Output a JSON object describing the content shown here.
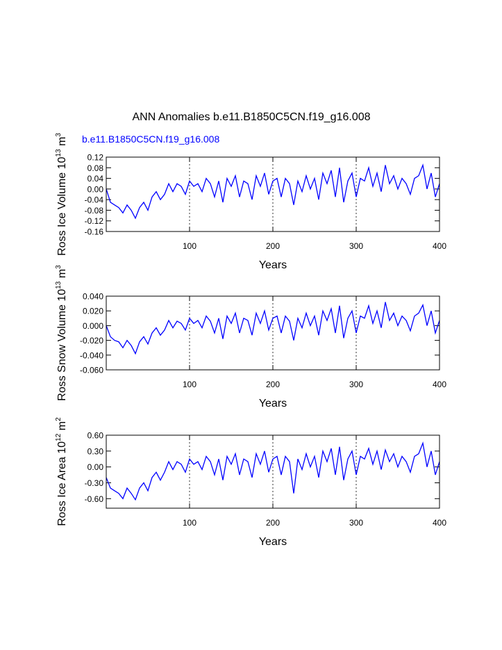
{
  "title": "ANN Anomalies b.e11.B1850C5CN.f19_g16.008",
  "subtitle": "b.e11.B1850C5CN.f19_g16.008",
  "chart_data": [
    {
      "type": "line",
      "y_label": [
        "Ross Ice Volume 10",
        "13",
        " m",
        "3"
      ],
      "x_label": "Years",
      "x": [
        0,
        5,
        10,
        15,
        20,
        25,
        30,
        35,
        40,
        45,
        50,
        55,
        60,
        65,
        70,
        75,
        80,
        85,
        90,
        95,
        100,
        105,
        110,
        115,
        120,
        125,
        130,
        135,
        140,
        145,
        150,
        155,
        160,
        165,
        170,
        175,
        180,
        185,
        190,
        195,
        200,
        205,
        210,
        215,
        220,
        225,
        230,
        235,
        240,
        245,
        250,
        255,
        260,
        265,
        270,
        275,
        280,
        285,
        290,
        295,
        300,
        305,
        310,
        315,
        320,
        325,
        330,
        335,
        340,
        345,
        350,
        355,
        360,
        365,
        370,
        375,
        380,
        385,
        390,
        395,
        400
      ],
      "series": [
        {
          "color": "#0000ff",
          "values": [
            0.0,
            -0.05,
            -0.06,
            -0.07,
            -0.09,
            -0.06,
            -0.08,
            -0.11,
            -0.07,
            -0.05,
            -0.08,
            -0.03,
            -0.01,
            -0.04,
            -0.02,
            0.02,
            -0.01,
            0.02,
            0.01,
            -0.02,
            0.03,
            0.01,
            0.02,
            -0.01,
            0.04,
            0.02,
            -0.03,
            0.03,
            -0.05,
            0.04,
            0.01,
            0.05,
            -0.03,
            0.03,
            0.02,
            -0.04,
            0.05,
            0.01,
            0.06,
            -0.02,
            0.03,
            0.04,
            -0.03,
            0.04,
            0.02,
            -0.06,
            0.03,
            -0.01,
            0.05,
            0.0,
            0.04,
            -0.04,
            0.06,
            0.02,
            0.07,
            -0.03,
            0.08,
            -0.05,
            0.03,
            0.06,
            -0.03,
            0.04,
            0.03,
            0.08,
            0.01,
            0.06,
            -0.01,
            0.09,
            0.02,
            0.05,
            0.0,
            0.04,
            0.02,
            -0.02,
            0.04,
            0.05,
            0.09,
            0.0,
            0.06,
            -0.03,
            0.02
          ]
        }
      ],
      "xlim": [
        0,
        400
      ],
      "xticks": [
        100,
        200,
        300,
        400
      ],
      "xgrid": true,
      "ylim": [
        -0.16,
        0.12
      ],
      "yticks": [
        0.12,
        0.08,
        0.04,
        {
          "value": 0,
          "label": "0.00"
        },
        -0.04,
        -0.08,
        -0.12,
        -0.16
      ]
    },
    {
      "type": "line",
      "y_label": [
        "Ross Snow Volume 10",
        "13",
        " m",
        "3"
      ],
      "x_label": "Years",
      "x": [
        0,
        5,
        10,
        15,
        20,
        25,
        30,
        35,
        40,
        45,
        50,
        55,
        60,
        65,
        70,
        75,
        80,
        85,
        90,
        95,
        100,
        105,
        110,
        115,
        120,
        125,
        130,
        135,
        140,
        145,
        150,
        155,
        160,
        165,
        170,
        175,
        180,
        185,
        190,
        195,
        200,
        205,
        210,
        215,
        220,
        225,
        230,
        235,
        240,
        245,
        250,
        255,
        260,
        265,
        270,
        275,
        280,
        285,
        290,
        295,
        300,
        305,
        310,
        315,
        320,
        325,
        330,
        335,
        340,
        345,
        350,
        355,
        360,
        365,
        370,
        375,
        380,
        385,
        390,
        395,
        400
      ],
      "series": [
        {
          "color": "#0000ff",
          "values": [
            0.0,
            -0.015,
            -0.02,
            -0.022,
            -0.03,
            -0.02,
            -0.027,
            -0.038,
            -0.022,
            -0.015,
            -0.025,
            -0.01,
            -0.003,
            -0.013,
            -0.006,
            0.007,
            -0.003,
            0.006,
            0.003,
            -0.006,
            0.01,
            0.003,
            0.007,
            -0.003,
            0.013,
            0.006,
            -0.01,
            0.01,
            -0.018,
            0.013,
            0.003,
            0.017,
            -0.01,
            0.01,
            0.007,
            -0.013,
            0.017,
            0.003,
            0.02,
            -0.006,
            0.01,
            0.013,
            -0.01,
            0.013,
            0.006,
            -0.02,
            0.01,
            -0.003,
            0.017,
            0.0,
            0.013,
            -0.013,
            0.02,
            0.007,
            0.023,
            -0.01,
            0.027,
            -0.017,
            0.01,
            0.02,
            -0.01,
            0.013,
            0.01,
            0.027,
            0.003,
            0.02,
            -0.003,
            0.032,
            0.007,
            0.017,
            0.0,
            0.013,
            0.007,
            -0.007,
            0.013,
            0.017,
            0.028,
            0.0,
            0.02,
            -0.01,
            0.007
          ]
        }
      ],
      "xlim": [
        0,
        400
      ],
      "xticks": [
        100,
        200,
        300,
        400
      ],
      "xgrid": true,
      "ylim": [
        -0.06,
        0.04
      ],
      "yticks": [
        {
          "value": 0.04,
          "label": "0.040"
        },
        {
          "value": 0.02,
          "label": "0.020"
        },
        {
          "value": 0,
          "label": "0.000"
        },
        {
          "value": -0.02,
          "label": "-0.020"
        },
        {
          "value": -0.04,
          "label": "-0.040"
        },
        {
          "value": -0.06,
          "label": "-0.060"
        }
      ]
    },
    {
      "type": "line",
      "y_label": [
        "Ross Ice Area 10",
        "12",
        " m",
        "2"
      ],
      "x_label": "Years",
      "x": [
        0,
        5,
        10,
        15,
        20,
        25,
        30,
        35,
        40,
        45,
        50,
        55,
        60,
        65,
        70,
        75,
        80,
        85,
        90,
        95,
        100,
        105,
        110,
        115,
        120,
        125,
        130,
        135,
        140,
        145,
        150,
        155,
        160,
        165,
        170,
        175,
        180,
        185,
        190,
        195,
        200,
        205,
        210,
        215,
        220,
        225,
        230,
        235,
        240,
        245,
        250,
        255,
        260,
        265,
        270,
        275,
        280,
        285,
        290,
        295,
        300,
        305,
        310,
        315,
        320,
        325,
        330,
        335,
        340,
        345,
        350,
        355,
        360,
        365,
        370,
        375,
        380,
        385,
        390,
        395,
        400
      ],
      "series": [
        {
          "color": "#0000ff",
          "values": [
            -0.2,
            -0.4,
            -0.45,
            -0.5,
            -0.6,
            -0.4,
            -0.5,
            -0.62,
            -0.4,
            -0.3,
            -0.45,
            -0.2,
            -0.1,
            -0.25,
            -0.1,
            0.1,
            -0.05,
            0.1,
            0.05,
            -0.1,
            0.15,
            0.05,
            0.1,
            -0.05,
            0.2,
            0.1,
            -0.15,
            0.15,
            -0.25,
            0.2,
            0.05,
            0.25,
            -0.15,
            0.15,
            0.1,
            -0.2,
            0.25,
            0.05,
            0.3,
            -0.1,
            0.15,
            0.2,
            -0.15,
            0.2,
            0.1,
            -0.5,
            0.15,
            -0.05,
            0.25,
            0.0,
            0.2,
            -0.2,
            0.3,
            0.1,
            0.35,
            -0.15,
            0.38,
            -0.25,
            0.15,
            0.3,
            -0.15,
            0.2,
            0.15,
            0.35,
            0.05,
            0.3,
            -0.05,
            0.32,
            0.1,
            0.25,
            0.0,
            0.2,
            0.1,
            -0.1,
            0.2,
            0.25,
            0.45,
            0.0,
            0.3,
            -0.15,
            0.1
          ]
        }
      ],
      "xlim": [
        0,
        400
      ],
      "xticks": [
        100,
        200,
        300,
        400
      ],
      "xgrid": true,
      "ylim": [
        -0.78,
        0.6
      ],
      "yticks": [
        {
          "value": 0.6,
          "label": "0.60"
        },
        {
          "value": 0.3,
          "label": "0.30"
        },
        {
          "value": 0,
          "label": "0.00"
        },
        {
          "value": -0.3,
          "label": "-0.30"
        },
        {
          "value": -0.6,
          "label": "-0.60"
        }
      ]
    }
  ]
}
